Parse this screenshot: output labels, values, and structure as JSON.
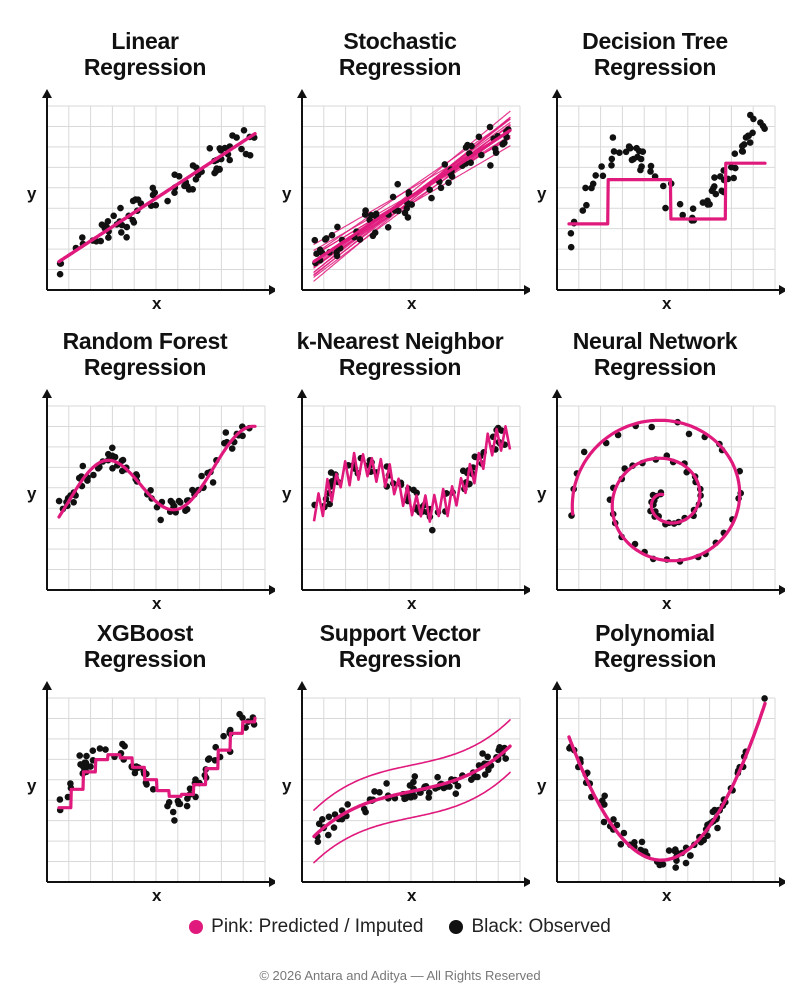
{
  "colors": {
    "pink": "#e0197d",
    "black": "#111111",
    "grid": "#d9d9d9"
  },
  "chart_data": [
    {
      "id": "linear",
      "type": "scatter",
      "title_lines": [
        "Linear",
        "Regression"
      ],
      "xlabel": "x",
      "ylabel": "y",
      "model": "linear",
      "grid": true
    },
    {
      "id": "stochastic",
      "type": "scatter",
      "title_lines": [
        "Stochastic",
        "Regression"
      ],
      "xlabel": "x",
      "ylabel": "y",
      "model": "stochastic",
      "grid": true
    },
    {
      "id": "decision-tree",
      "type": "scatter",
      "title_lines": [
        "Decision Tree",
        "Regression"
      ],
      "xlabel": "x",
      "ylabel": "y",
      "model": "step",
      "grid": true
    },
    {
      "id": "random-forest",
      "type": "scatter",
      "title_lines": [
        "Random Forest",
        "Regression"
      ],
      "xlabel": "x",
      "ylabel": "y",
      "model": "smooth-wave",
      "grid": true
    },
    {
      "id": "knn",
      "type": "scatter",
      "title_lines": [
        "k-Nearest Neighbor",
        "Regression"
      ],
      "xlabel": "x",
      "ylabel": "y",
      "model": "jagged",
      "grid": true
    },
    {
      "id": "neural-network",
      "type": "scatter",
      "title_lines": [
        "Neural Network",
        "Regression"
      ],
      "xlabel": "x",
      "ylabel": "y",
      "model": "spiral",
      "grid": true
    },
    {
      "id": "xgboost",
      "type": "scatter",
      "title_lines": [
        "XGBoost",
        "Regression"
      ],
      "xlabel": "x",
      "ylabel": "y",
      "model": "fine-steps",
      "grid": true
    },
    {
      "id": "svr",
      "type": "scatter",
      "title_lines": [
        "Support Vector",
        "Regression"
      ],
      "xlabel": "x",
      "ylabel": "y",
      "model": "cubic-band",
      "grid": true
    },
    {
      "id": "polynomial",
      "type": "scatter",
      "title_lines": [
        "Polynomial",
        "Regression"
      ],
      "xlabel": "x",
      "ylabel": "y",
      "model": "parabola",
      "grid": true
    }
  ],
  "legend": {
    "predicted": "Pink: Predicted / Imputed",
    "observed": "Black: Observed"
  },
  "footer": {
    "copyright": "© 2026 Antara and Aditya — All Rights Reserved"
  }
}
